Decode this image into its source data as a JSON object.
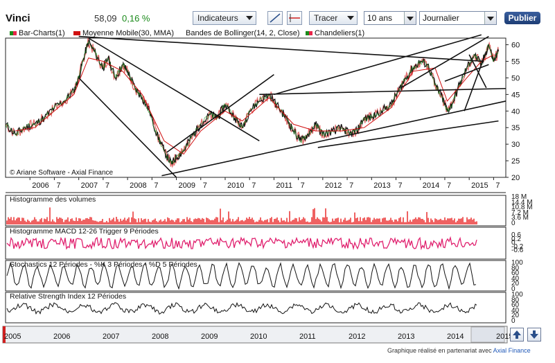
{
  "header": {
    "title": "Vinci",
    "price": "58,09",
    "change": "0,16 %",
    "indicators_label": "Indicateurs",
    "draw_label": "Tracer",
    "period_value": "10 ans",
    "interval_value": "Journalier",
    "publish_label": "Publier"
  },
  "legend": {
    "bar_charts": "Bar-Charts(1)",
    "moving_average": "Moyenne Mobile(30, MMA)",
    "bollinger": "Bandes de Bollinger(14, 2, Close)",
    "candlesticks": "Chandeliers(1)"
  },
  "credit": "© Ariane Software - Axial Finance",
  "footer": {
    "prefix": "Graphique réalisé en partenariat avec",
    "link": "Axial Finance"
  },
  "panels": {
    "volume": "Histogramme des volumes",
    "macd": "Histogramme MACD 12-26   Trigger 9 Périodes",
    "stochastic": "Stochastics 12 Périodes  -  %K 3 Périodes  -  %D 5 Périodes",
    "rsi": "Relative Strength Index 12 Périodes"
  },
  "axis_labels": {
    "volume_ticks": [
      "18 M",
      "14.4 M",
      "10.8 M",
      "7.2 M",
      "3.6 M",
      "0"
    ],
    "macd_ticks": [
      "0.6",
      "0.2",
      "0",
      "-0.2",
      "-0.6"
    ],
    "osc_ticks": [
      "100",
      "80",
      "60",
      "40",
      "20",
      "0"
    ],
    "navigator_years": [
      "2005",
      "2006",
      "2007",
      "2008",
      "2009",
      "2010",
      "2011",
      "2012",
      "2013",
      "2014",
      "2015"
    ]
  },
  "colors": {
    "up": "#1a8a1a",
    "accent": "#e8254a",
    "ma": "#d01010",
    "volume": "#e82020",
    "macd": "#e0206e",
    "publish": "#244a8a"
  },
  "chart_data": {
    "type": "line",
    "title": "Vinci",
    "ylim": [
      20,
      62
    ],
    "yticks": [
      20,
      25,
      30,
      35,
      40,
      45,
      50,
      55,
      60
    ],
    "x_tick_labels": [
      "2006",
      "7",
      "2007",
      "7",
      "2008",
      "7",
      "2009",
      "7",
      "2010",
      "7",
      "2011",
      "7",
      "2012",
      "7",
      "2013",
      "7",
      "2014",
      "7",
      "2015",
      "7"
    ],
    "series": [
      {
        "x": [
          2005.5,
          2005.7,
          2005.9,
          2006.1,
          2006.3,
          2006.5,
          2006.7,
          2006.9,
          2007.0,
          2007.1,
          2007.2,
          2007.35,
          2007.5,
          2007.6,
          2007.75,
          2007.9,
          2008.0,
          2008.15,
          2008.3,
          2008.45,
          2008.6,
          2008.75,
          2008.9,
          2009.0,
          2009.15,
          2009.3,
          2009.5,
          2009.7,
          2009.85,
          2010.0,
          2010.2,
          2010.35,
          2010.5,
          2010.7,
          2010.9,
          2011.1,
          2011.25,
          2011.4,
          2011.55,
          2011.7,
          2011.85,
          2012.0,
          2012.2,
          2012.4,
          2012.55,
          2012.7,
          2012.85,
          2013.0,
          2013.2,
          2013.4,
          2013.55,
          2013.7,
          2013.85,
          2014.0,
          2014.15,
          2014.3,
          2014.45,
          2014.55,
          2014.65,
          2014.8,
          2014.95,
          2015.1,
          2015.25,
          2015.4,
          2015.5,
          2015.6
        ],
        "values": [
          36,
          33,
          35,
          36,
          38,
          41,
          43,
          46,
          50,
          56,
          61,
          57,
          53,
          56,
          50,
          54,
          52,
          47,
          44,
          40,
          33,
          28,
          24,
          26,
          28,
          32,
          36,
          39,
          38,
          42,
          38,
          35,
          40,
          43,
          45,
          41,
          38,
          34,
          31,
          33,
          36,
          33,
          34,
          35,
          33,
          34,
          38,
          38,
          40,
          42,
          46,
          50,
          53,
          55,
          54,
          48,
          44,
          40,
          42,
          48,
          53,
          57,
          54,
          60,
          55,
          58
        ]
      },
      {
        "name": "Moyenne Mobile(30, MMA)",
        "x": [
          2005.7,
          2006.1,
          2006.5,
          2006.9,
          2007.2,
          2007.5,
          2007.9,
          2008.3,
          2008.75,
          2009.15,
          2009.5,
          2010.0,
          2010.35,
          2010.9,
          2011.4,
          2011.85,
          2012.4,
          2012.85,
          2013.4,
          2013.85,
          2014.3,
          2014.55,
          2014.95,
          2015.25,
          2015.5
        ],
        "values": [
          34,
          35,
          40,
          45,
          56,
          55,
          52,
          45,
          31,
          27,
          34,
          40,
          37,
          44,
          36,
          34,
          34,
          35,
          41,
          52,
          53,
          43,
          50,
          55,
          57
        ]
      }
    ]
  }
}
